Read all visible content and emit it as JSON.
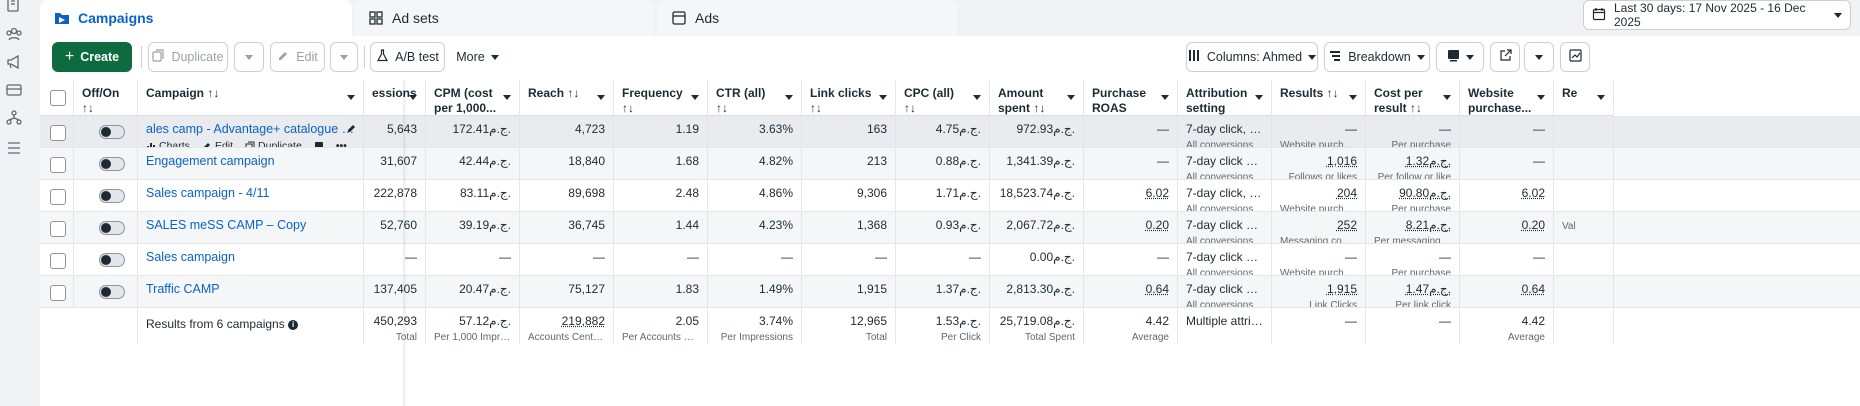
{
  "rail": {
    "icons": [
      "pages-icon",
      "audience-icon",
      "megaphone-icon",
      "billing-icon",
      "hierarchy-icon",
      "menu-icon"
    ]
  },
  "tabs": [
    {
      "label": "Campaigns",
      "icon": "folder-icon",
      "active": true
    },
    {
      "label": "Ad sets",
      "icon": "grid-icon",
      "active": false
    },
    {
      "label": "Ads",
      "icon": "ad-icon",
      "active": false
    }
  ],
  "date_range": "Last 30 days: 17 Nov 2025 - 16 Dec 2025",
  "toolbar": {
    "create_label": "Create",
    "duplicate_label": "Duplicate",
    "edit_label": "Edit",
    "ab_test_label": "A/B test",
    "more_label": "More",
    "columns_label": "Columns: Ahmed",
    "breakdown_label": "Breakdown"
  },
  "colors": {
    "accent": "#0a62c7",
    "create": "#0e6b3f"
  },
  "table": {
    "headers": {
      "offon": "Off/On ↑↓",
      "campaign": "Campaign ↑↓",
      "impressions": "essions",
      "cpm": "CPM (cost per 1,000...",
      "reach": "Reach ↑↓",
      "frequency": "Frequency ↑↓",
      "ctr": "CTR (all) ↑↓",
      "link_clicks": "Link clicks ↑↓",
      "cpc": "CPC (all) ↑↓",
      "amount_spent": "Amount spent ↑↓",
      "purchase_roas": "Purchase ROAS (retur...",
      "attribution": "Attribution setting",
      "results": "Results ↑↓",
      "cost_per_result": "Cost per result ↑↓",
      "website_purchase": "Website purchase...",
      "re": "Re"
    },
    "row_actions": {
      "charts": "Charts",
      "edit": "Edit",
      "duplicate": "Duplicate"
    },
    "rows": [
      {
        "name": "ales camp - Advantage+ catalogue ads - Bo...",
        "impressions": "5,643",
        "cpm": "172.41ج.م.",
        "reach": "4,723",
        "frequency": "1.19",
        "ctr": "3.63%",
        "link_clicks": "163",
        "cpc": "4.75ج.م.",
        "amount_spent": "972.93ج.م.",
        "roas": "—",
        "attribution": "7-day click, 1-d...",
        "attribution_sub": "All conversions",
        "results": "—",
        "results_sub": "Website purchase",
        "cost": "—",
        "cost_sub": "Per purchase",
        "website": "—"
      },
      {
        "name": "Engagement campaign",
        "impressions": "31,607",
        "cpm": "42.44ج.م.",
        "reach": "18,840",
        "frequency": "1.68",
        "ctr": "4.82%",
        "link_clicks": "213",
        "cpc": "0.88ج.م.",
        "amount_spent": "1,341.39ج.م.",
        "roas": "—",
        "attribution": "7-day click or 1...",
        "attribution_sub": "All conversions",
        "results": "1,016",
        "results_sub": "Follows or likes",
        "cost": "1.32ج.م.",
        "cost_sub": "Per follow or like",
        "website": "—"
      },
      {
        "name": "Sales campaign - 4/11",
        "impressions": "222,878",
        "cpm": "83.11ج.م.",
        "reach": "89,698",
        "frequency": "2.48",
        "ctr": "4.86%",
        "link_clicks": "9,306",
        "cpc": "1.71ج.م.",
        "amount_spent": "18,523.74ج.م.",
        "roas": "6.02",
        "attribution": "7-day click, 1-d...",
        "attribution_sub": "All conversions",
        "results": "204",
        "results_sub": "Website purchases",
        "cost": "90.80ج.م.",
        "cost_sub": "Per purchase",
        "website": "6.02"
      },
      {
        "name": "SALES meSS CAMP – Copy",
        "impressions": "52,760",
        "cpm": "39.19ج.م.",
        "reach": "36,745",
        "frequency": "1.44",
        "ctr": "4.23%",
        "link_clicks": "1,368",
        "cpc": "0.93ج.م.",
        "amount_spent": "2,067.72ج.م.",
        "roas": "0.20",
        "attribution": "7-day click or 1...",
        "attribution_sub": "All conversions",
        "results": "252",
        "results_sub": "Messaging conver...",
        "cost": "8.21ج.م.",
        "cost_sub": "Per messaging con...",
        "website": "0.20",
        "extra": "Val"
      },
      {
        "name": "Sales campaign",
        "impressions": "—",
        "cpm": "—",
        "reach": "—",
        "frequency": "—",
        "ctr": "—",
        "link_clicks": "—",
        "cpc": "—",
        "amount_spent": "0.00ج.م.",
        "roas": "—",
        "attribution": "7-day click or 1...",
        "attribution_sub": "All conversions",
        "results": "—",
        "results_sub": "Website purchase",
        "cost": "—",
        "cost_sub": "Per purchase",
        "website": "—"
      },
      {
        "name": "Traffic CAMP",
        "impressions": "137,405",
        "cpm": "20.47ج.م.",
        "reach": "75,127",
        "frequency": "1.83",
        "ctr": "1.49%",
        "link_clicks": "1,915",
        "cpc": "1.37ج.م.",
        "amount_spent": "2,813.30ج.م.",
        "roas": "0.64",
        "attribution": "7-day click or 1...",
        "attribution_sub": "All conversions",
        "results": "1,915",
        "results_sub": "Link Clicks",
        "cost": "1.47ج.م.",
        "cost_sub": "Per link click",
        "website": "0.64"
      }
    ],
    "summary": {
      "label": "Results from 6 campaigns",
      "impressions": "450,293",
      "impressions_sub": "Total",
      "cpm": "57.12ج.م.",
      "cpm_sub": "Per 1,000 Impressi...",
      "reach": "219,882",
      "reach_sub": "Accounts Centre ac...",
      "frequency": "2.05",
      "frequency_sub": "Per Accounts Centr...",
      "ctr": "3.74%",
      "ctr_sub": "Per Impressions",
      "link_clicks": "12,965",
      "link_clicks_sub": "Total",
      "cpc": "1.53ج.م.",
      "cpc_sub": "Per Click",
      "amount_spent": "25,719.08ج.م.",
      "amount_spent_sub": "Total Spent",
      "roas": "4.42",
      "roas_sub": "Average",
      "attribution": "Multiple attrib...",
      "results": "—",
      "cost": "—",
      "website": "4.42",
      "website_sub": "Average"
    }
  }
}
